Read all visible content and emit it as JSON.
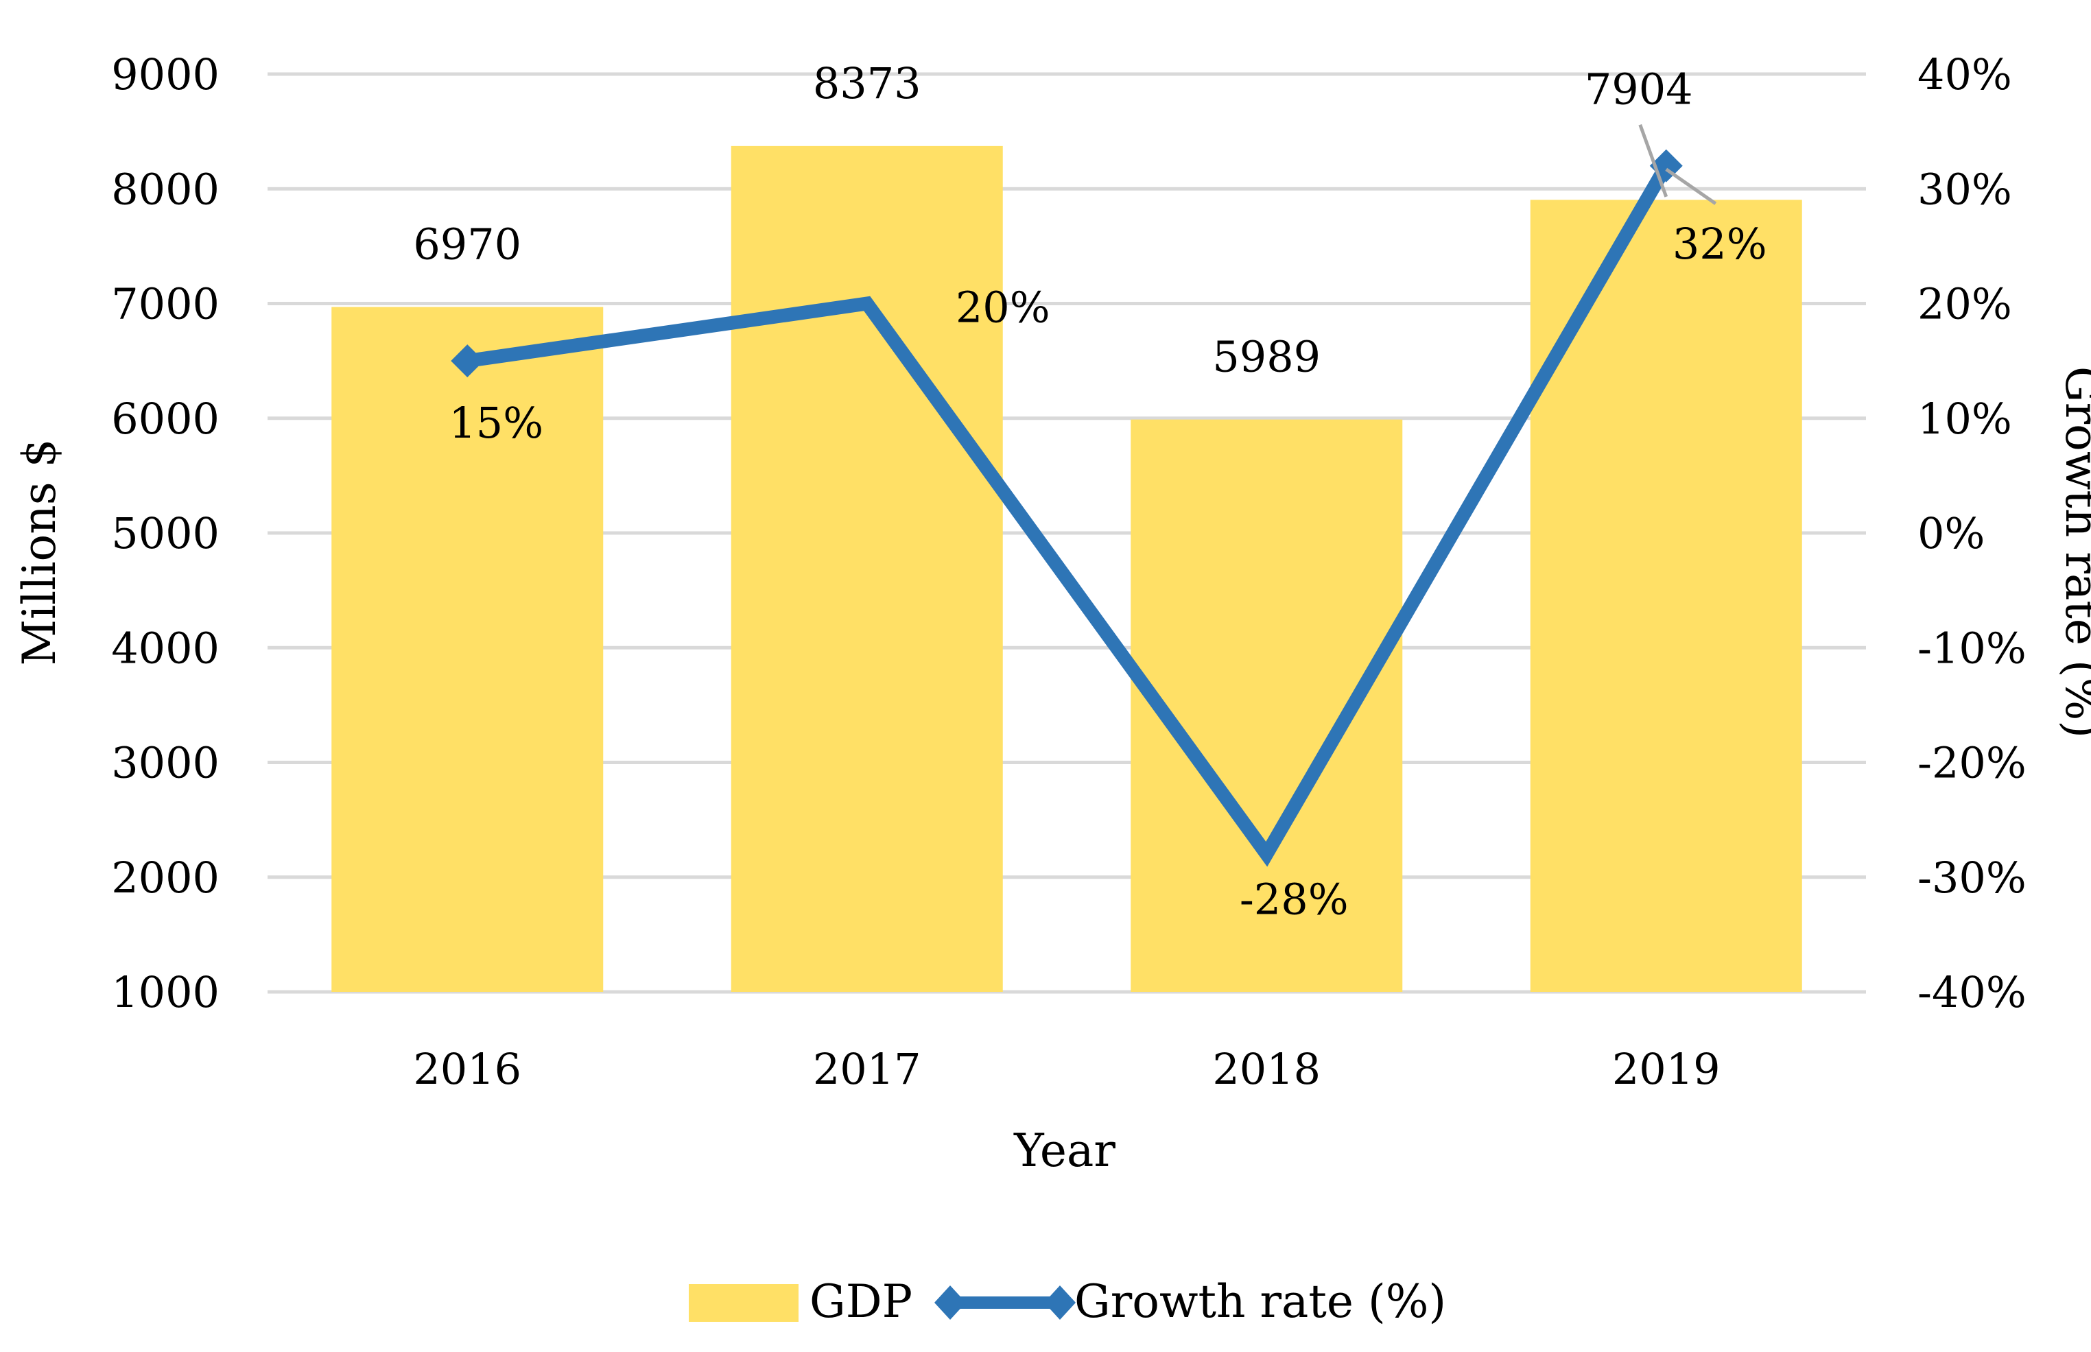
{
  "chart_data": {
    "type": "bar+line",
    "categories": [
      "2016",
      "2017",
      "2018",
      "2019"
    ],
    "series": [
      {
        "name": "GDP",
        "type": "bar",
        "axis": "left",
        "values": [
          6970,
          8373,
          5989,
          7904
        ],
        "data_labels": [
          "6970",
          "8373",
          "5989",
          "7904"
        ],
        "color": "#FFE066"
      },
      {
        "name": "Growth rate (%)",
        "type": "line",
        "axis": "right",
        "values": [
          15,
          20,
          -28,
          32
        ],
        "data_labels": [
          "15%",
          "20%",
          "-28%",
          "32%"
        ],
        "color": "#2E75B6",
        "marker": "diamond"
      }
    ],
    "title": "",
    "xlabel": "Year",
    "ylabel": "Millions $",
    "y2label": "Growth rate (%)",
    "ylim": [
      1000,
      9000
    ],
    "y2lim": [
      -40,
      40
    ],
    "yticks": [
      "1000",
      "2000",
      "3000",
      "4000",
      "5000",
      "6000",
      "7000",
      "8000",
      "9000"
    ],
    "y2ticks": [
      "-40%",
      "-30%",
      "-20%",
      "-10%",
      "0%",
      "10%",
      "20%",
      "30%",
      "40%"
    ],
    "grid": true,
    "legend": "bottom",
    "leader_line_color": "#A6A6A6"
  }
}
